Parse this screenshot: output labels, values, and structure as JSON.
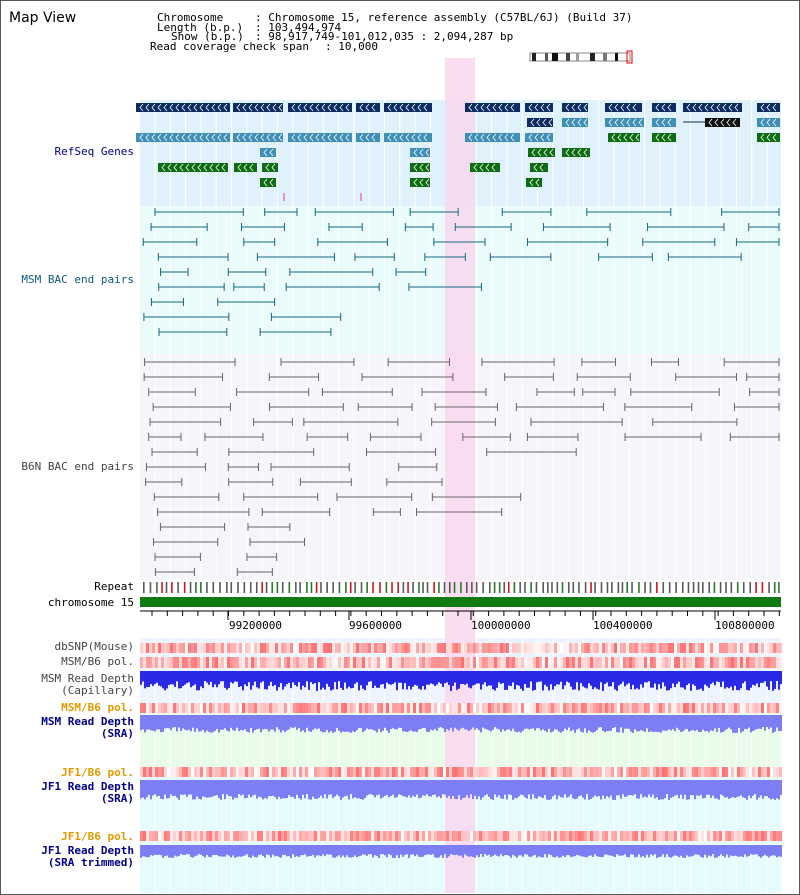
{
  "page": {
    "title": "Map View"
  },
  "header": {
    "chromosome_label": "Chromosome",
    "chromosome_value": ": Chromosome 15, reference assembly (C57BL/6J) (Build 37)",
    "length_label": "Length (b.p.)",
    "length_value": ": 103,494,974",
    "show_label": "Show (b.p.)",
    "show_value": ": 98,917,749-101,012,035 : 2,094,287 bp",
    "coverage_label": "Read coverage check span",
    "coverage_value": ": 10,000"
  },
  "tracks": {
    "refseq": "RefSeq Genes",
    "msm_bac": "MSM BAC end pairs",
    "b6n_bac": "B6N BAC end pairs",
    "repeat": "Repeat",
    "chromosome": "chromosome 15",
    "dbsnp": "dbSNP(Mouse)",
    "msm_b6_pol_1": "MSM/B6 pol.",
    "msm_read_depth_cap_1": "MSM Read Depth",
    "msm_read_depth_cap_2": "(Capillary)",
    "msm_b6_pol_2": "MSM/B6 pol.",
    "msm_read_depth_sra_1": "MSM Read Depth",
    "msm_read_depth_sra_2": "(SRA)",
    "jf1_b6_pol_1": "JF1/B6 pol.",
    "jf1_read_depth_sra_1": "JF1 Read Depth",
    "jf1_read_depth_sra_2": "(SRA)",
    "jf1_b6_pol_2": "JF1/B6 pol.",
    "jf1_read_depth_trim_1": "JF1 Read Depth",
    "jf1_read_depth_trim_2": "(SRA trimmed)"
  },
  "axis": {
    "ticks": [
      "99200000",
      "99600000",
      "100000000",
      "100400000",
      "100800000"
    ]
  },
  "colors": {
    "refseq_bg": "#dff1fb",
    "msm_bg": "#e9fbfb",
    "b6n_bg": "#f5f5fb",
    "highlight": "#f9d7ef",
    "gene_dark": "#0b2d63",
    "gene_mid": "#3f8fb6",
    "gene_green": "#0e6c12",
    "msm_line": "#15697f",
    "b6n_line": "#666666",
    "chrom_bar": "#0e7a12",
    "depth_blue": "#2a2ae6",
    "depth_light": "#7e7ef4",
    "label_navy": "#00008b",
    "label_teal": "#0e5a78",
    "label_orange": "#e39a00",
    "label_gray": "#444444"
  }
}
